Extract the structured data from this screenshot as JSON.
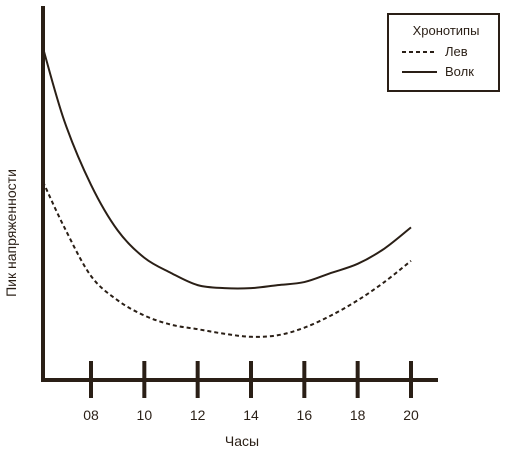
{
  "chart_data": {
    "type": "line",
    "title": "",
    "xlabel": "Часы",
    "ylabel": "Пик напряженности",
    "xlim": [
      6.2,
      21.2
    ],
    "ylim": [
      0,
      100
    ],
    "x_ticks": [
      {
        "value": 8,
        "label": "08"
      },
      {
        "value": 10,
        "label": "10"
      },
      {
        "value": 12,
        "label": "12"
      },
      {
        "value": 14,
        "label": "14"
      },
      {
        "value": 16,
        "label": "16"
      },
      {
        "value": 18,
        "label": "18"
      },
      {
        "value": 20,
        "label": "20"
      }
    ],
    "grid": false,
    "legend": {
      "title": "Хронотипы",
      "position": "top-right"
    },
    "series": [
      {
        "name": "Лев",
        "style": "dashed",
        "x": [
          6.2,
          7,
          8,
          9,
          10,
          11,
          12,
          13,
          14,
          15,
          16,
          17,
          18,
          19,
          20
        ],
        "y": [
          56,
          41,
          25,
          17,
          12,
          9,
          7.5,
          6,
          5,
          5.5,
          8,
          12,
          17,
          23,
          30
        ]
      },
      {
        "name": "Волк",
        "style": "solid",
        "x": [
          6.2,
          7,
          8,
          9,
          10,
          11,
          12,
          13,
          14,
          15,
          16,
          17,
          18,
          19,
          20
        ],
        "y": [
          100,
          76,
          55,
          40,
          31,
          26,
          22,
          21,
          21,
          22,
          23,
          26,
          29,
          34,
          41
        ]
      }
    ],
    "colors": {
      "line": "#2a1f16",
      "axis": "#2a1f16",
      "text": "#2a1f16",
      "background": "#ffffff"
    }
  }
}
